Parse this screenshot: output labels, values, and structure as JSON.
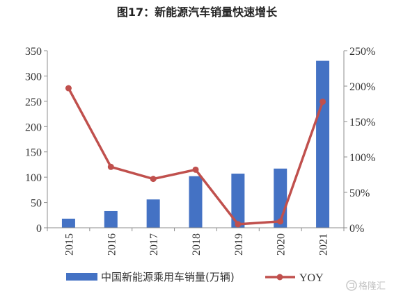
{
  "chart_data": {
    "type": "bar",
    "title": "图17：新能源汽车销量快速增长",
    "categories": [
      "2015",
      "2016",
      "2017",
      "2018",
      "2019",
      "2020",
      "2021"
    ],
    "series": [
      {
        "name": "中国新能源乘用车销量(万辆)",
        "type": "bar",
        "axis": "left",
        "values": [
          18,
          33,
          56,
          102,
          107,
          117,
          330
        ]
      },
      {
        "name": "YOY",
        "type": "line",
        "axis": "right",
        "values": [
          197,
          86,
          69,
          82,
          5,
          9,
          178
        ]
      }
    ],
    "y_left": {
      "min": 0,
      "max": 350,
      "ticks": [
        "0",
        "50",
        "100",
        "150",
        "200",
        "250",
        "300",
        "350"
      ]
    },
    "y_right": {
      "min": 0,
      "max": 250,
      "ticks": [
        "0%",
        "50%",
        "100%",
        "150%",
        "200%",
        "250%"
      ]
    },
    "grid": false,
    "legend_position": "bottom",
    "colors": {
      "bar": "#4472c4",
      "line": "#c0504d"
    }
  },
  "watermark": {
    "text": "格隆汇"
  }
}
